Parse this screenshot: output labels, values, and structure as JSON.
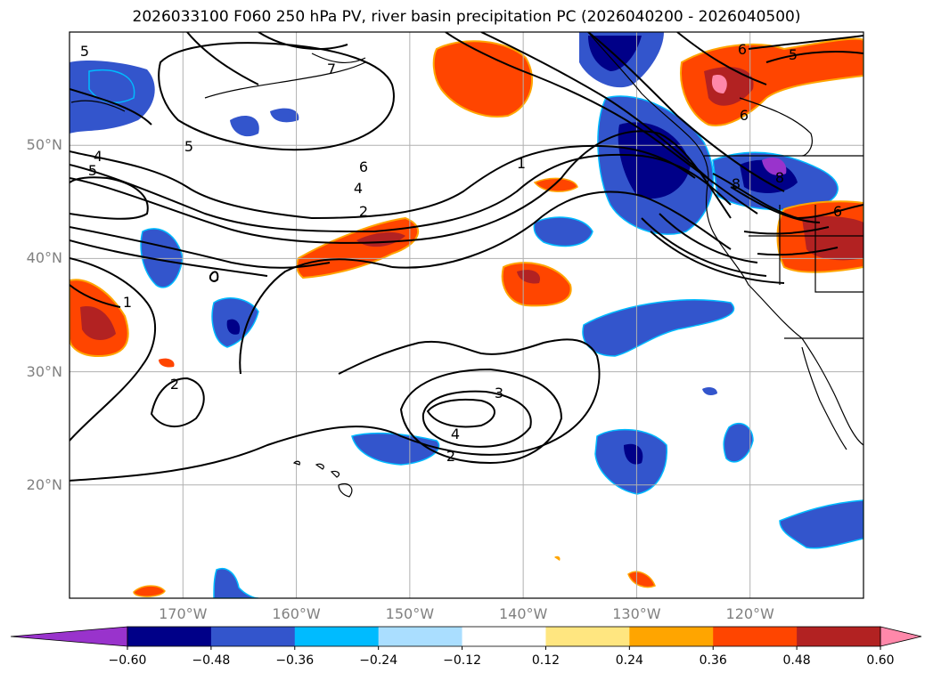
{
  "title": "2026033100 F060 250 hPa PV, river basin precipitation PC (2026040200 - 2026040500)",
  "map": {
    "lon_range": [
      -180,
      -110
    ],
    "lat_range": [
      10,
      60
    ],
    "lat_ticks": [
      {
        "value": 50,
        "label": "50°N"
      },
      {
        "value": 40,
        "label": "40°N"
      },
      {
        "value": 30,
        "label": "30°N"
      },
      {
        "value": 20,
        "label": "20°N"
      }
    ],
    "lon_ticks": [
      {
        "value": -170,
        "label": "170°W"
      },
      {
        "value": -160,
        "label": "160°W"
      },
      {
        "value": -150,
        "label": "150°W"
      },
      {
        "value": -140,
        "label": "140°W"
      },
      {
        "value": -130,
        "label": "130°W"
      },
      {
        "value": -120,
        "label": "120°W"
      }
    ],
    "contour_labels": [
      "5",
      "5",
      "4",
      "5",
      "6",
      "4",
      "2",
      "1",
      "1",
      "2",
      "3",
      "4",
      "2",
      "6",
      "5",
      "6",
      "8",
      "7",
      "6",
      "8"
    ],
    "grid": true
  },
  "colorbar": {
    "levels": [
      "−0.60",
      "−0.48",
      "−0.36",
      "−0.24",
      "−0.12",
      "0.12",
      "0.24",
      "0.36",
      "0.48",
      "0.60"
    ],
    "colors": [
      "#9933cc",
      "#000088",
      "#3355cc",
      "#00bbff",
      "#aadeff",
      "#ffffff",
      "#ffe680",
      "#ffa500",
      "#ff4500",
      "#b22222",
      "#ff88aa"
    ],
    "extend": "both"
  }
}
